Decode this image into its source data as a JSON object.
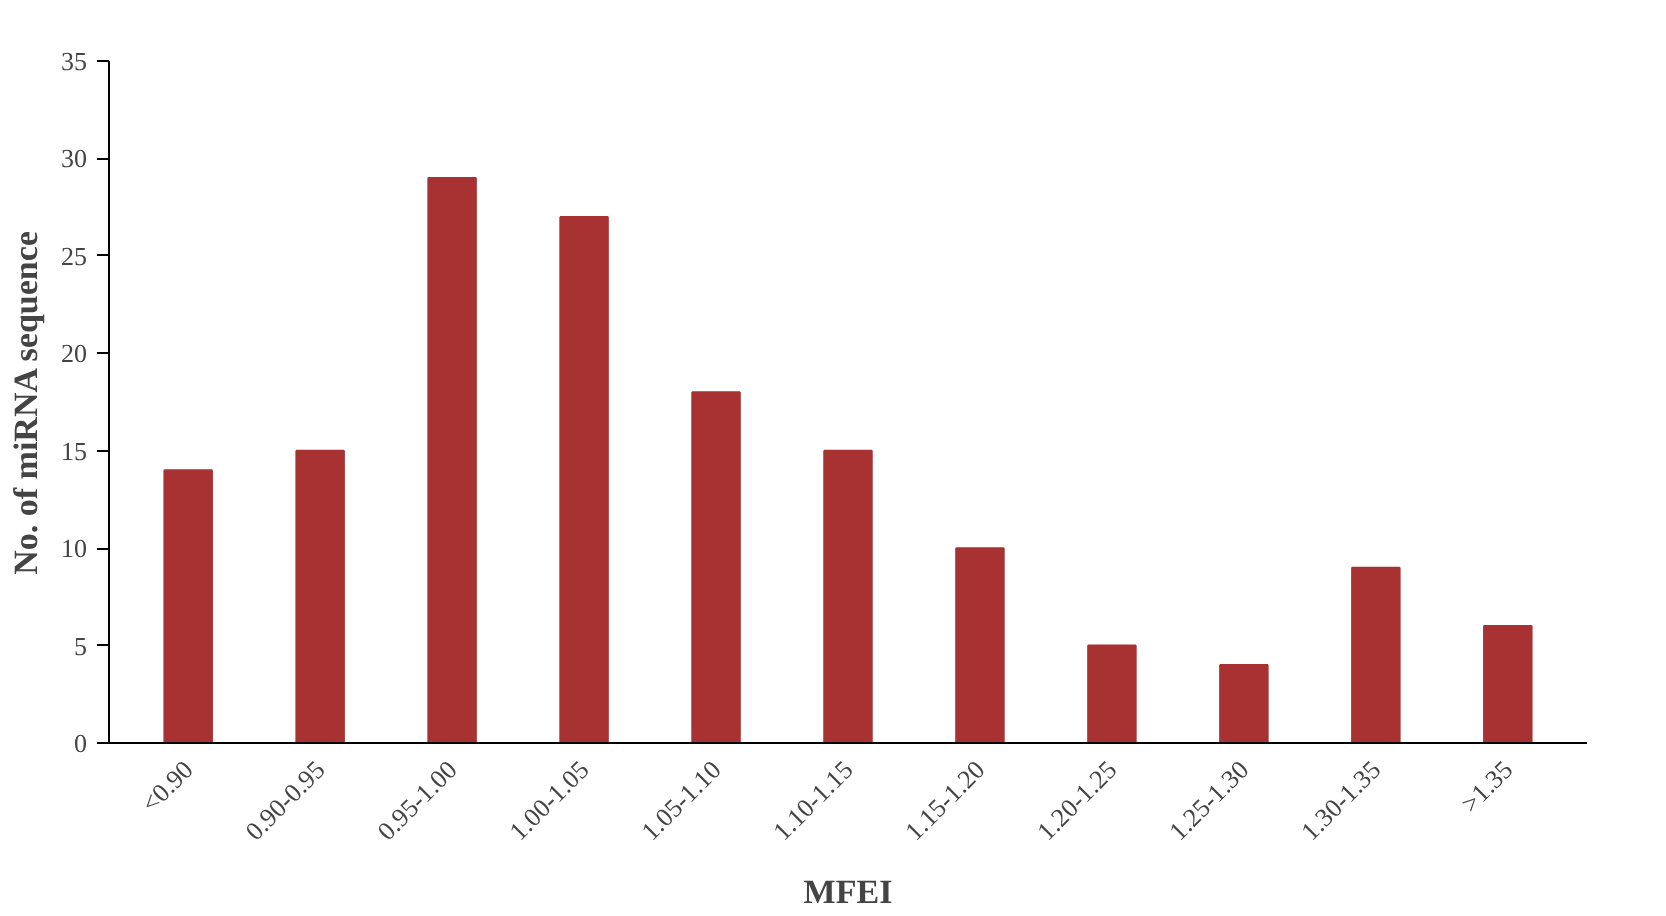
{
  "chart_data": {
    "type": "bar",
    "xlabel": "MFEI",
    "ylabel": "No. of miRNA sequence",
    "categories": [
      "<0.90",
      "0.90-0.95",
      "0.95-1.00",
      "1.00-1.05",
      "1.05-1.10",
      "1.10-1.15",
      "1.15-1.20",
      "1.20-1.25",
      "1.25-1.30",
      "1.30-1.35",
      ">1.35"
    ],
    "values": [
      14,
      15,
      29,
      27,
      18,
      15,
      10,
      5,
      4,
      9,
      6
    ],
    "color": "#a83232",
    "ylim": [
      0,
      35
    ],
    "yticks": [
      0,
      5,
      10,
      15,
      20,
      25,
      30,
      35
    ],
    "grid": false
  }
}
